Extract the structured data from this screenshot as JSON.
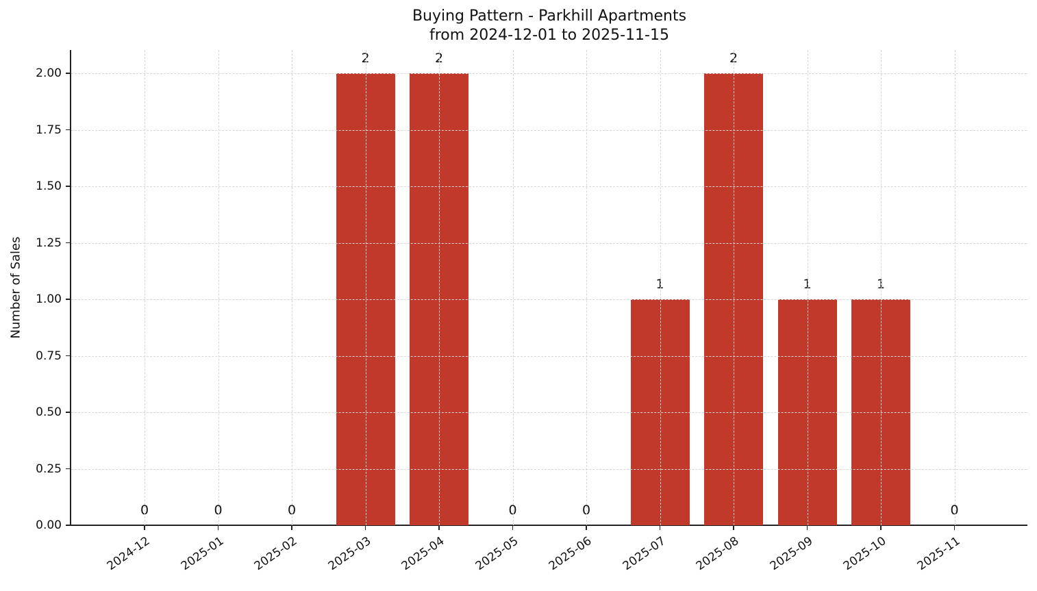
{
  "chart_data": {
    "type": "bar",
    "title": "Buying Pattern - Parkhill Apartments",
    "subtitle": "from 2024-12-01 to 2025-11-15",
    "xlabel": "",
    "ylabel": "Number of Sales",
    "categories": [
      "2024-12",
      "2025-01",
      "2025-02",
      "2025-03",
      "2025-04",
      "2025-05",
      "2025-06",
      "2025-07",
      "2025-08",
      "2025-09",
      "2025-10",
      "2025-11"
    ],
    "values": [
      0,
      0,
      0,
      2,
      2,
      0,
      0,
      1,
      2,
      1,
      1,
      0
    ],
    "data_labels": [
      "0",
      "0",
      "0",
      "2",
      "2",
      "0",
      "0",
      "1",
      "2",
      "1",
      "1",
      "0"
    ],
    "ylim": [
      0,
      2.1
    ],
    "yticks": [
      "0.00",
      "0.25",
      "0.50",
      "0.75",
      "1.00",
      "1.25",
      "1.50",
      "1.75",
      "2.00"
    ],
    "grid": true,
    "bar_color": "#c0392b",
    "legend": null
  }
}
